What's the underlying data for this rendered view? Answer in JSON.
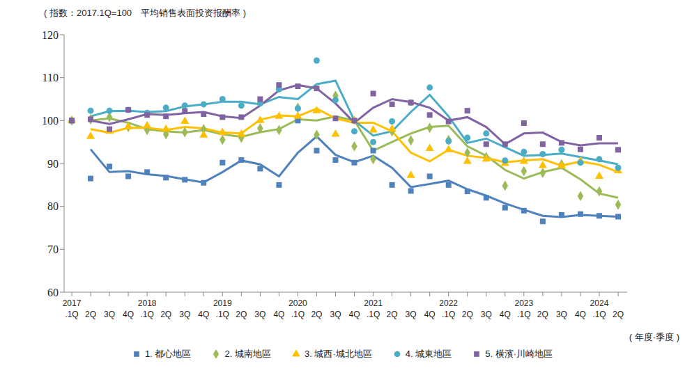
{
  "chart_data": {
    "type": "line",
    "title": "( 指数：2017.1Q=100　平均销售表面投资报酬率 )",
    "x_label": "( 年度·季度 )",
    "categories": [
      "2017 .1Q",
      "2Q",
      "3Q",
      "4Q",
      "2018 .1Q",
      "2Q",
      "3Q",
      "4Q",
      "2019 .1Q",
      "2Q",
      "3Q",
      "4Q",
      "2020 .1Q",
      "2Q",
      "3Q",
      "4Q",
      "2021 .1Q",
      "2Q",
      "3Q",
      "4Q",
      "2022 .1Q",
      "2Q",
      "3Q",
      "4Q",
      "2023 .1Q",
      "2Q",
      "3Q",
      "4Q",
      "2024 .1Q",
      "2Q"
    ],
    "ylim": [
      60,
      120
    ],
    "yticks": [
      60,
      70,
      80,
      90,
      100,
      110,
      120
    ],
    "grid": false,
    "series": [
      {
        "name": "1. 都心地區",
        "color": "#4f81bd",
        "marker": "square",
        "values": [
          100,
          86.5,
          89.3,
          87,
          88,
          86.7,
          86.2,
          85.5,
          90.2,
          90.8,
          88.8,
          85,
          100,
          93,
          90.8,
          90.2,
          93,
          85,
          83.6,
          87,
          85,
          83.5,
          82,
          79.7,
          79,
          76.5,
          78,
          78.2,
          77.8,
          77.6
        ],
        "trend": [
          null,
          93.3,
          88,
          88.2,
          87.5,
          87.1,
          86.3,
          85.6,
          88,
          90.7,
          89.8,
          87,
          92.5,
          96.3,
          92,
          90.3,
          91.8,
          89,
          84.5,
          85.2,
          86,
          84,
          82.5,
          80.7,
          79.2,
          77.8,
          77.5,
          78,
          77.8,
          77.6
        ]
      },
      {
        "name": "2. 城南地區",
        "color": "#9bbb59",
        "marker": "diamond",
        "values": [
          100,
          100.3,
          100.8,
          98.5,
          97.8,
          96.8,
          97.3,
          98,
          95.5,
          96,
          98.2,
          97.8,
          103,
          96.7,
          105.8,
          94,
          91,
          97.5,
          95.4,
          98.3,
          95.5,
          92.5,
          91.5,
          84.8,
          88.2,
          87.8,
          89.8,
          82.4,
          83.5,
          80.4
        ],
        "trend": [
          null,
          100,
          100.5,
          99.5,
          98,
          97.5,
          97.2,
          97.8,
          96.8,
          96.2,
          97.3,
          98,
          100.3,
          100,
          101,
          100,
          93,
          95,
          97,
          98.5,
          98.8,
          94,
          91.8,
          88.5,
          86.5,
          88,
          89,
          86.3,
          83,
          82
        ]
      },
      {
        "name": "3. 城西·城北地區",
        "color": "#ffc000",
        "marker": "triangle",
        "values": [
          100,
          96.3,
          97.5,
          98.5,
          98.8,
          98,
          99.8,
          96.6,
          97.2,
          96.8,
          100,
          101,
          101,
          102.3,
          96.8,
          100,
          97.8,
          98,
          87.2,
          93.5,
          93.2,
          90.5,
          91,
          90,
          90.5,
          89.5,
          89.5,
          90.5,
          87,
          88.3
        ],
        "trend": [
          null,
          98,
          97.2,
          98.3,
          98.3,
          97.8,
          98.5,
          98.2,
          97.2,
          97,
          100.2,
          101.2,
          101,
          102.8,
          100.5,
          99.5,
          99.5,
          97.5,
          92.5,
          90.5,
          93.2,
          91.8,
          91.3,
          90.3,
          90.7,
          91,
          89.5,
          90.5,
          89.7,
          88
        ]
      },
      {
        "name": "4. 城東地區",
        "color": "#4bacc6",
        "marker": "circle",
        "values": [
          100,
          102.3,
          102.3,
          102.5,
          101.8,
          103,
          103.5,
          103.8,
          105,
          103.5,
          104,
          107.3,
          102.8,
          114,
          104.8,
          97.5,
          95,
          99.8,
          104.2,
          107.7,
          95.2,
          96,
          97,
          90.7,
          92.7,
          92.2,
          93.2,
          90.2,
          91,
          89
        ],
        "trend": [
          null,
          101,
          102.2,
          102.3,
          102,
          102.2,
          103.3,
          103.8,
          104.4,
          104.4,
          103.8,
          105.5,
          105,
          108.5,
          109.3,
          100,
          96.5,
          97.5,
          102,
          106,
          101,
          94.8,
          95.8,
          93.8,
          91.8,
          92,
          92.3,
          91.5,
          90.7,
          89.8
        ]
      },
      {
        "name": "5. 横濱·川崎地區",
        "color": "#8064a2",
        "marker": "square",
        "values": [
          100,
          100.3,
          98,
          102.5,
          101.3,
          101,
          102.2,
          101.5,
          100.8,
          100.8,
          105,
          108.3,
          108,
          107.5,
          100.5,
          100,
          106.3,
          103.8,
          104.2,
          101.3,
          99.8,
          102.3,
          94.5,
          94.5,
          99.4,
          94.5,
          94.8,
          93.3,
          96,
          93.2
        ],
        "trend": [
          null,
          100,
          99.2,
          100.3,
          101.5,
          101.3,
          101.7,
          102,
          101,
          100.6,
          103.5,
          107,
          108.3,
          107.5,
          104,
          99.5,
          103,
          105,
          104.3,
          103,
          100,
          100.8,
          98.5,
          94.5,
          97,
          97.2,
          95,
          94.2,
          94.7,
          94.7
        ]
      }
    ]
  }
}
